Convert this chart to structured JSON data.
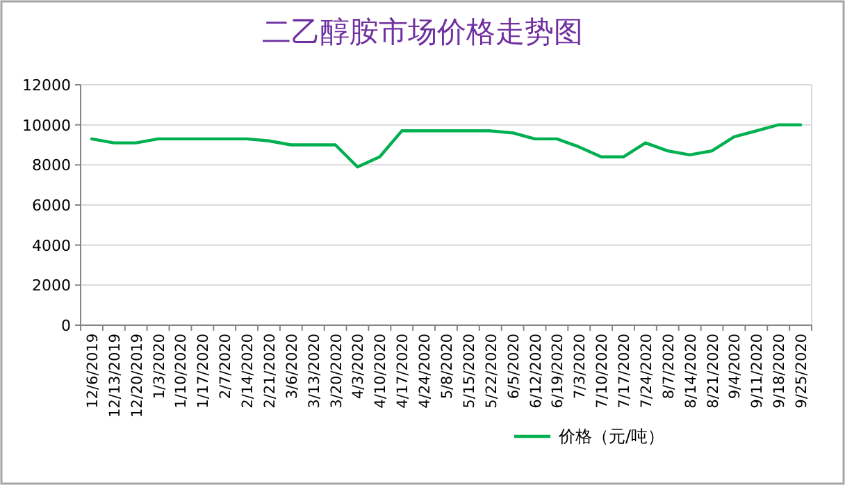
{
  "chart_data": {
    "type": "line",
    "title": "二乙醇胺市场价格走势图",
    "categories": [
      "12/6/2019",
      "12/13/2019",
      "12/20/2019",
      "1/3/2020",
      "1/10/2020",
      "1/17/2020",
      "2/7/2020",
      "2/14/2020",
      "2/21/2020",
      "3/6/2020",
      "3/13/2020",
      "3/20/2020",
      "4/3/2020",
      "4/10/2020",
      "4/17/2020",
      "4/24/2020",
      "5/8/2020",
      "5/15/2020",
      "5/22/2020",
      "6/5/2020",
      "6/12/2020",
      "6/19/2020",
      "7/3/2020",
      "7/10/2020",
      "7/17/2020",
      "7/24/2020",
      "8/7/2020",
      "8/14/2020",
      "8/21/2020",
      "9/4/2020",
      "9/11/2020",
      "9/18/2020",
      "9/25/2020"
    ],
    "series": [
      {
        "name": "价格（元/吨）",
        "color": "#00b050",
        "values": [
          9300,
          9100,
          9100,
          9300,
          9300,
          9300,
          9300,
          9300,
          9200,
          9000,
          9000,
          9000,
          7900,
          8400,
          9700,
          9700,
          9700,
          9700,
          9700,
          9600,
          9300,
          9300,
          8900,
          8400,
          8400,
          9100,
          8700,
          8500,
          8700,
          9400,
          9700,
          10000,
          10000
        ]
      }
    ],
    "ylim": [
      0,
      12000
    ],
    "yticks": [
      0,
      2000,
      4000,
      6000,
      8000,
      10000,
      12000
    ],
    "grid": "y",
    "legend": "bottom",
    "marker": "none",
    "line_style": "solid"
  }
}
